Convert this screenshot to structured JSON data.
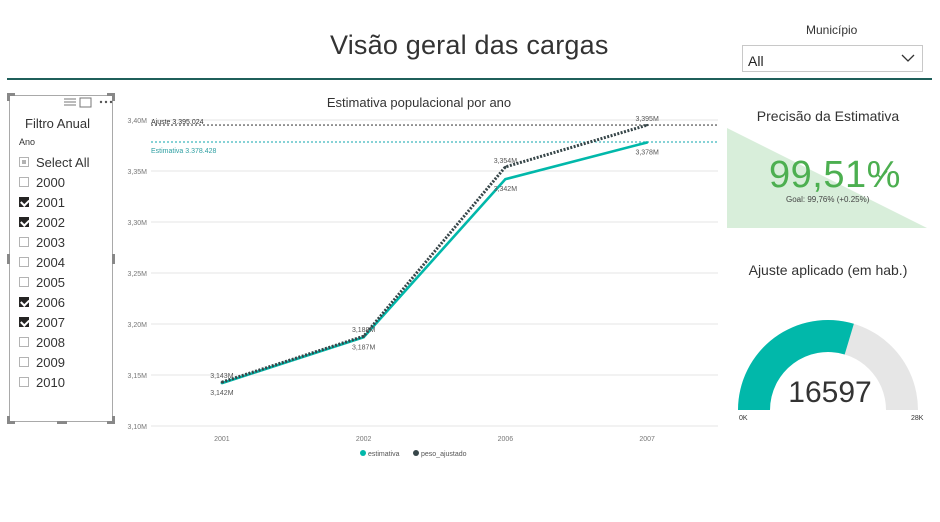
{
  "header": {
    "title": "Visão geral das cargas"
  },
  "municipio": {
    "label": "Município",
    "value": "All"
  },
  "slicer": {
    "title": "Filtro Anual",
    "field": "Ano",
    "options": [
      {
        "label": "Select All",
        "state": "partial"
      },
      {
        "label": "2000",
        "state": "unchecked"
      },
      {
        "label": "2001",
        "state": "checked"
      },
      {
        "label": "2002",
        "state": "checked"
      },
      {
        "label": "2003",
        "state": "unchecked"
      },
      {
        "label": "2004",
        "state": "unchecked"
      },
      {
        "label": "2005",
        "state": "unchecked"
      },
      {
        "label": "2006",
        "state": "checked"
      },
      {
        "label": "2007",
        "state": "checked"
      },
      {
        "label": "2008",
        "state": "unchecked"
      },
      {
        "label": "2009",
        "state": "unchecked"
      },
      {
        "label": "2010",
        "state": "unchecked"
      }
    ]
  },
  "chart_data": {
    "type": "line",
    "title": "Estimativa populacional por ano",
    "categories": [
      "2001",
      "2002",
      "2006",
      "2007"
    ],
    "ylim": [
      3.1,
      3.4
    ],
    "yticks": [
      3.1,
      3.15,
      3.2,
      3.25,
      3.3,
      3.35,
      3.4
    ],
    "ytick_labels": [
      "3,10M",
      "3,15M",
      "3,20M",
      "3,25M",
      "3,30M",
      "3,35M",
      "3,40M"
    ],
    "series": [
      {
        "name": "estimativa",
        "values": [
          3.142,
          3.187,
          3.342,
          3.378
        ],
        "labels": [
          "3,142M",
          "3,187M",
          "3,342M",
          "3,378M"
        ],
        "color": "#01b8aa"
      },
      {
        "name": "peso_ajustado",
        "values": [
          3.143,
          3.188,
          3.354,
          3.395
        ],
        "labels": [
          "3,143M",
          "3,188M",
          "3,354M",
          "3,395M"
        ],
        "color": "#374649"
      }
    ],
    "reference_lines": [
      {
        "label": "Ajuste 3.395.024",
        "value": 3.395024,
        "color": "#808080"
      },
      {
        "label": "Estimativa 3.378.428",
        "value": 3.378428,
        "color": "#5fc4c8"
      }
    ],
    "legend": "bottom",
    "grid": true
  },
  "kpi": {
    "title": "Precisão da Estimativa",
    "value": "99,51%",
    "goal": "Goal: 99,76% (+0.25%)",
    "trend_icon": "check-icon",
    "color": "#4caf50"
  },
  "gauge": {
    "title": "Ajuste aplicado (em hab.)",
    "value": "16597",
    "min_label": "0K",
    "max_label": "28K",
    "fraction": 0.5928,
    "color": "#01b8aa"
  }
}
